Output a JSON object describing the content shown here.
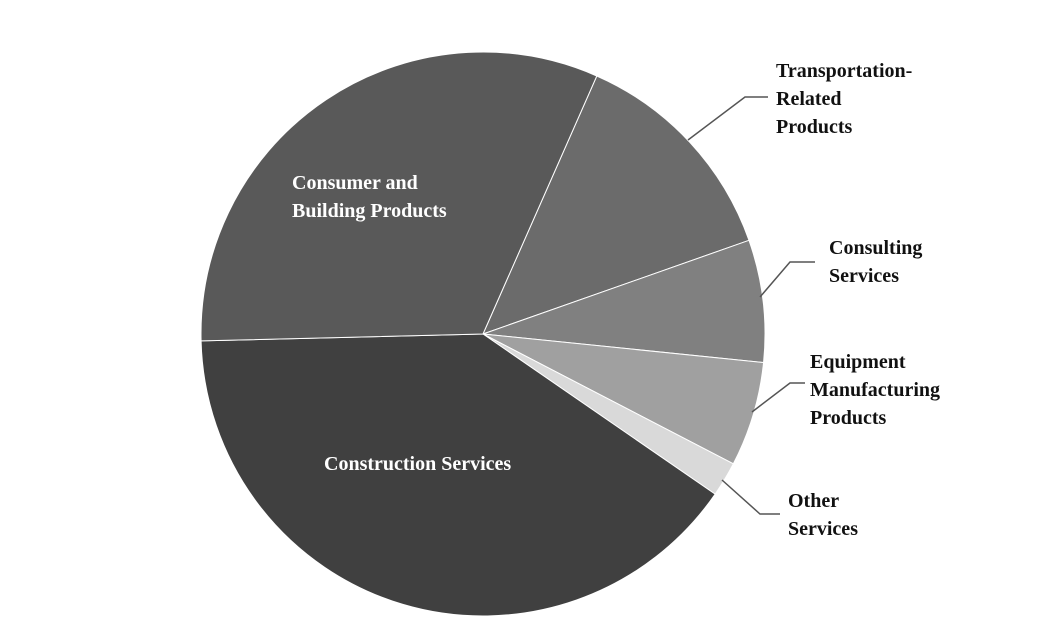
{
  "chart_data": {
    "type": "pie",
    "categories": [
      "Transportation-Related Products",
      "Consulting Services",
      "Equipment Manufacturing Products",
      "Other Services",
      "Construction Services",
      "Consumer and Building Products"
    ],
    "values": [
      13,
      7,
      6,
      2,
      40,
      32
    ],
    "colors": [
      "#6b6b6b",
      "#808080",
      "#a0a0a0",
      "#d9d9d9",
      "#404040",
      "#595959"
    ]
  }
}
